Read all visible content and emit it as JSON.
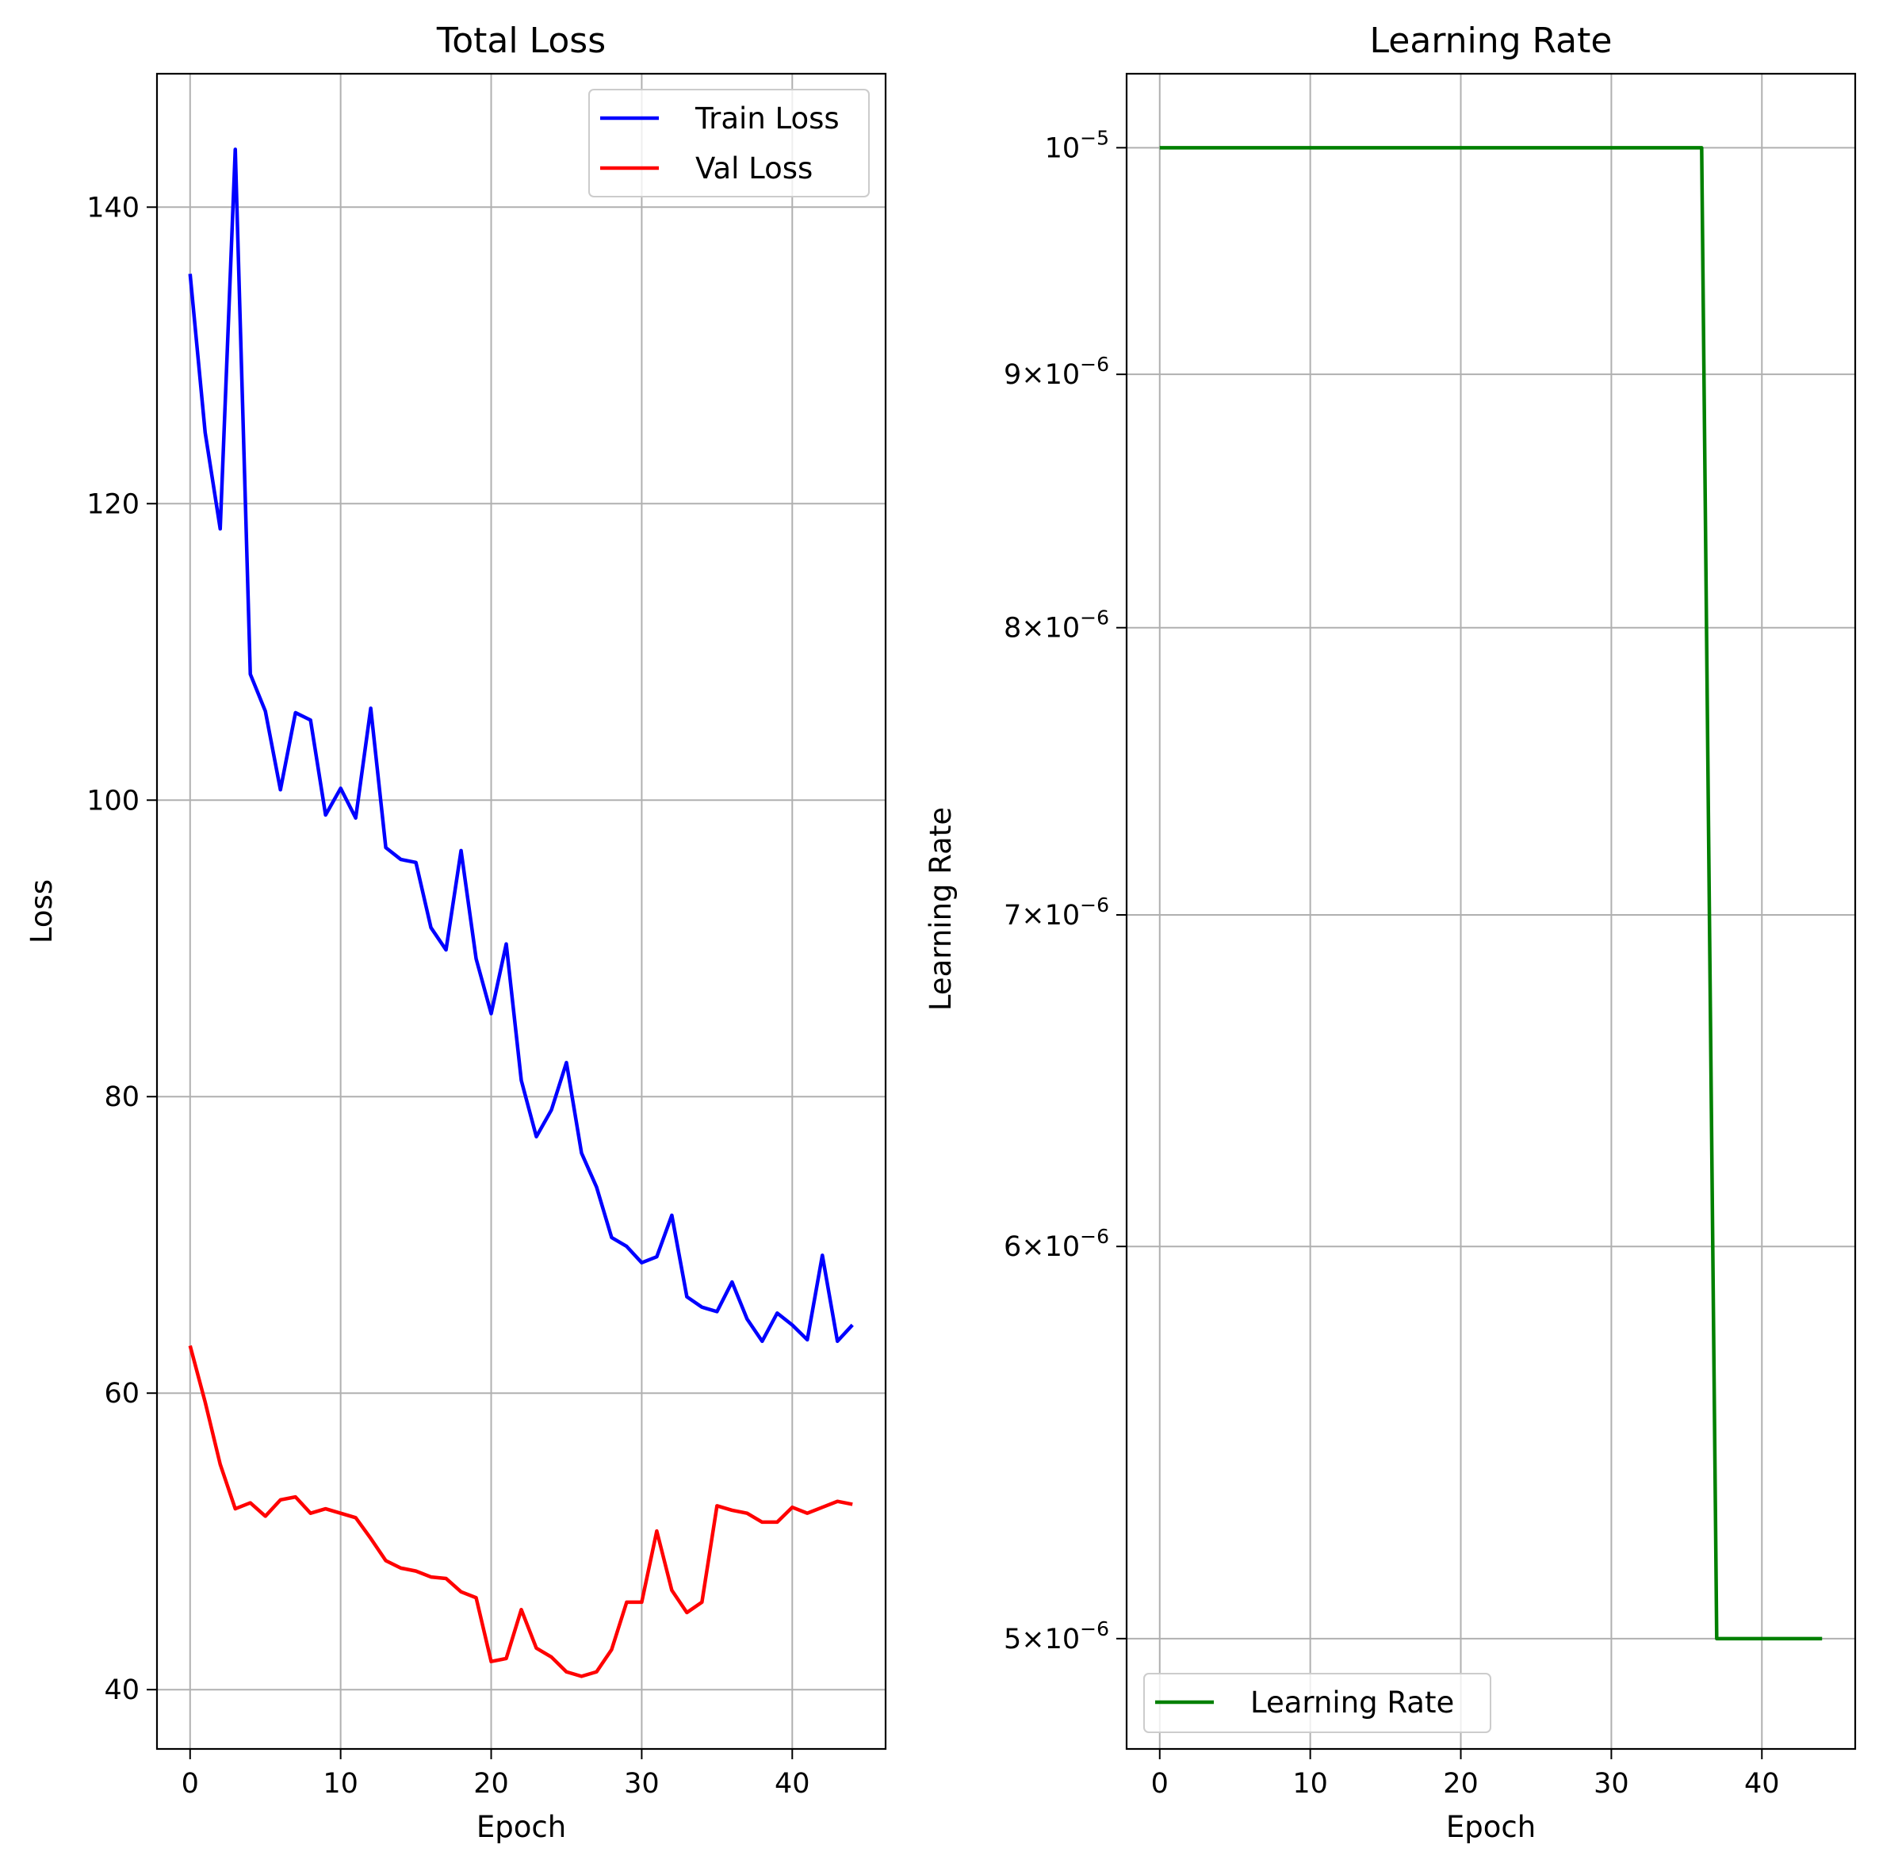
{
  "chart_data": [
    {
      "type": "line",
      "title": "Total Loss",
      "xlabel": "Epoch",
      "ylabel": "Loss",
      "xlim": [
        -2.2,
        46.2
      ],
      "ylim": [
        36,
        149
      ],
      "xticks": [
        0,
        10,
        20,
        30,
        40
      ],
      "yticks": [
        40,
        60,
        80,
        100,
        120,
        140
      ],
      "grid": true,
      "legend_position": "upper right",
      "series": [
        {
          "name": "Train Loss",
          "color": "#0000ff",
          "x": [
            0,
            1,
            2,
            3,
            4,
            5,
            6,
            7,
            8,
            9,
            10,
            11,
            12,
            13,
            14,
            15,
            16,
            17,
            18,
            19,
            20,
            21,
            22,
            23,
            24,
            25,
            26,
            27,
            28,
            29,
            30,
            31,
            32,
            33,
            34,
            35,
            36,
            37,
            38,
            39,
            40,
            41,
            42,
            43,
            44
          ],
          "values": [
            135.5,
            124.8,
            118.3,
            143.9,
            108.5,
            106.0,
            100.7,
            105.9,
            105.4,
            99.0,
            100.8,
            98.8,
            106.2,
            96.8,
            96.0,
            95.8,
            91.4,
            89.9,
            96.6,
            89.3,
            85.6,
            90.3,
            81.1,
            77.3,
            79.1,
            82.3,
            76.2,
            73.9,
            70.5,
            69.9,
            68.8,
            69.2,
            72.0,
            66.5,
            65.8,
            65.5,
            67.5,
            65.0,
            63.5,
            65.4,
            64.6,
            63.6,
            69.3,
            63.5,
            64.6
          ]
        },
        {
          "name": "Val Loss",
          "color": "#ff0000",
          "x": [
            0,
            1,
            2,
            3,
            4,
            5,
            6,
            7,
            8,
            9,
            10,
            11,
            12,
            13,
            14,
            15,
            16,
            17,
            18,
            19,
            20,
            21,
            22,
            23,
            24,
            25,
            26,
            27,
            28,
            29,
            30,
            31,
            32,
            33,
            34,
            35,
            36,
            37,
            38,
            39,
            40,
            41,
            42,
            43,
            44
          ],
          "values": [
            63.2,
            59.4,
            55.2,
            52.2,
            52.6,
            51.7,
            52.8,
            53.0,
            51.9,
            52.2,
            51.9,
            51.6,
            50.2,
            48.7,
            48.2,
            48.0,
            47.6,
            47.5,
            46.6,
            46.2,
            41.9,
            42.1,
            45.4,
            42.8,
            42.2,
            41.2,
            40.9,
            41.2,
            42.7,
            45.9,
            45.9,
            50.7,
            46.7,
            45.2,
            45.9,
            52.4,
            52.1,
            51.9,
            51.3,
            51.3,
            52.3,
            51.9,
            52.3,
            52.7,
            52.5
          ]
        }
      ]
    },
    {
      "type": "line",
      "title": "Learning Rate",
      "xlabel": "Epoch",
      "ylabel": "Learning Rate",
      "yscale": "log",
      "xlim": [
        -2.2,
        46.2
      ],
      "ylim": [
        4.75e-06,
        1.035e-05
      ],
      "xticks": [
        0,
        10,
        20,
        30,
        40
      ],
      "yticks": [
        {
          "value": 1e-05,
          "base": "10",
          "exp": "−5"
        },
        {
          "value": 9e-06,
          "mant": "9",
          "base": "10",
          "exp": "−6"
        },
        {
          "value": 8e-06,
          "mant": "8",
          "base": "10",
          "exp": "−6"
        },
        {
          "value": 7e-06,
          "mant": "7",
          "base": "10",
          "exp": "−6"
        },
        {
          "value": 6e-06,
          "mant": "6",
          "base": "10",
          "exp": "−6"
        },
        {
          "value": 5e-06,
          "mant": "5",
          "base": "10",
          "exp": "−6"
        }
      ],
      "grid": true,
      "legend_position": "lower left",
      "series": [
        {
          "name": "Learning Rate",
          "color": "#008000",
          "x": [
            0,
            1,
            2,
            3,
            4,
            5,
            6,
            7,
            8,
            9,
            10,
            11,
            12,
            13,
            14,
            15,
            16,
            17,
            18,
            19,
            20,
            21,
            22,
            23,
            24,
            25,
            26,
            27,
            28,
            29,
            30,
            31,
            32,
            33,
            34,
            35,
            36,
            37,
            38,
            39,
            40,
            41,
            42,
            43,
            44
          ],
          "values": [
            1e-05,
            1e-05,
            1e-05,
            1e-05,
            1e-05,
            1e-05,
            1e-05,
            1e-05,
            1e-05,
            1e-05,
            1e-05,
            1e-05,
            1e-05,
            1e-05,
            1e-05,
            1e-05,
            1e-05,
            1e-05,
            1e-05,
            1e-05,
            1e-05,
            1e-05,
            1e-05,
            1e-05,
            1e-05,
            1e-05,
            1e-05,
            1e-05,
            1e-05,
            1e-05,
            1e-05,
            1e-05,
            1e-05,
            1e-05,
            1e-05,
            1e-05,
            1e-05,
            5e-06,
            5e-06,
            5e-06,
            5e-06,
            5e-06,
            5e-06,
            5e-06,
            5e-06
          ]
        }
      ]
    }
  ]
}
